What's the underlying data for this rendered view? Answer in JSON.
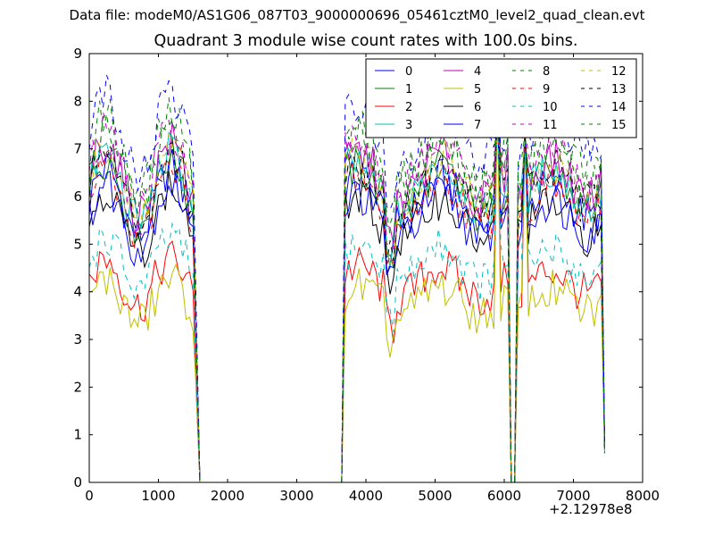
{
  "figure": {
    "suptitle": "Data file: modeM0/AS1G06_087T03_9000000696_05461cztM0_level2_quad_clean.evt",
    "x_offset_text": "+2.12978e8"
  },
  "chart_data": {
    "type": "line",
    "title": "Quadrant 3 module wise count rates with 100.0s bins.",
    "xlabel": "",
    "ylabel": "",
    "xlim": [
      0,
      8000
    ],
    "ylim": [
      0,
      9
    ],
    "xticks": [
      0,
      1000,
      2000,
      3000,
      4000,
      5000,
      6000,
      7000,
      8000
    ],
    "yticks": [
      0,
      1,
      2,
      3,
      4,
      5,
      6,
      7,
      8,
      9
    ],
    "grid": false,
    "legend_placement": "top-right",
    "legend_columns": 4,
    "x": [
      0,
      50,
      100,
      150,
      200,
      250,
      300,
      350,
      400,
      450,
      500,
      550,
      600,
      650,
      700,
      750,
      800,
      850,
      900,
      950,
      1000,
      1050,
      1100,
      1150,
      1200,
      1250,
      1300,
      1350,
      1400,
      1450,
      1500,
      1550,
      1600,
      1650,
      3650,
      3700,
      3750,
      3800,
      3850,
      3900,
      3950,
      4000,
      4050,
      4100,
      4150,
      4200,
      4250,
      4300,
      4350,
      4400,
      4450,
      4500,
      4550,
      4600,
      4650,
      4700,
      4750,
      4800,
      4850,
      4900,
      4950,
      5000,
      5050,
      5100,
      5150,
      5200,
      5250,
      5300,
      5350,
      5400,
      5450,
      5500,
      5550,
      5600,
      5650,
      5700,
      5750,
      5800,
      5850,
      5900,
      5950,
      6000,
      6050,
      6100,
      6150,
      6200,
      6250,
      6300,
      6350,
      6400,
      6450,
      6500,
      6550,
      6600,
      6650,
      6700,
      6750,
      6800,
      6850,
      6900,
      6950,
      7000,
      7050,
      7100,
      7150,
      7200,
      7250,
      7300,
      7350,
      7400,
      7450
    ],
    "series": [
      {
        "name": "0",
        "color": "#0000ff",
        "dash": "solid"
      },
      {
        "name": "1",
        "color": "#008000",
        "dash": "solid"
      },
      {
        "name": "2",
        "color": "#ff0000",
        "dash": "solid"
      },
      {
        "name": "3",
        "color": "#00bfbf",
        "dash": "solid"
      },
      {
        "name": "4",
        "color": "#bf00bf",
        "dash": "solid"
      },
      {
        "name": "5",
        "color": "#bfbf00",
        "dash": "solid"
      },
      {
        "name": "6",
        "color": "#000000",
        "dash": "solid"
      },
      {
        "name": "7",
        "color": "#0000ff",
        "dash": "solid"
      },
      {
        "name": "8",
        "color": "#008000",
        "dash": "dashed"
      },
      {
        "name": "9",
        "color": "#ff0000",
        "dash": "dashed"
      },
      {
        "name": "10",
        "color": "#00bfbf",
        "dash": "dashed"
      },
      {
        "name": "11",
        "color": "#bf00bf",
        "dash": "dashed"
      },
      {
        "name": "12",
        "color": "#bfbf00",
        "dash": "dashed"
      },
      {
        "name": "13",
        "color": "#000000",
        "dash": "dashed"
      },
      {
        "name": "14",
        "color": "#0000ff",
        "dash": "dashed"
      },
      {
        "name": "15",
        "color": "#008000",
        "dash": "dashed"
      }
    ]
  }
}
